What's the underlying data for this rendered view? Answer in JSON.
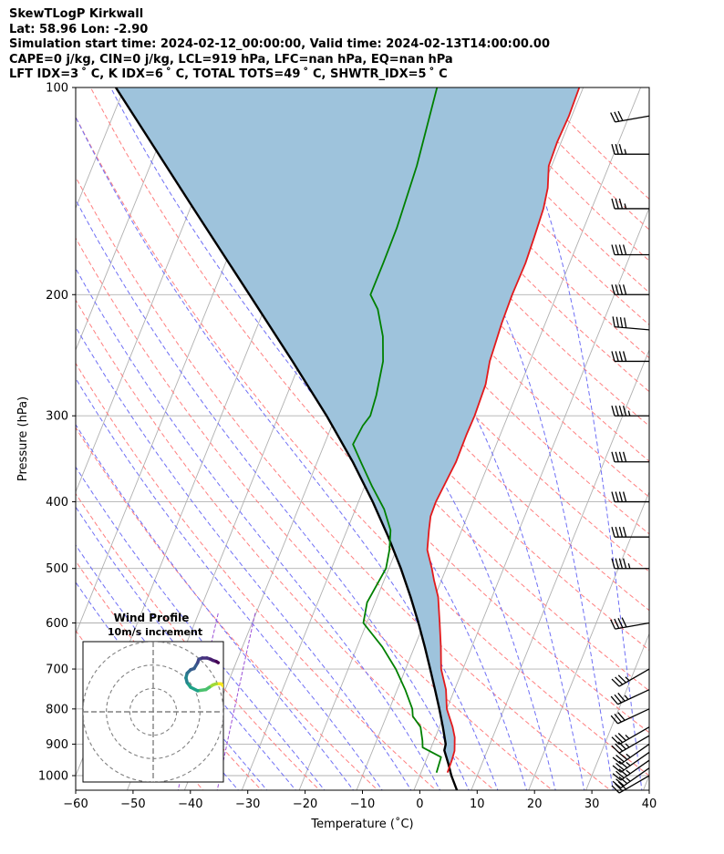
{
  "header": {
    "line1": "SkewTLogP Kirkwall",
    "line2": "Lat: 58.96   Lon: -2.90",
    "line3": "Simulation start time: 2024-02-12_00:00:00, Valid time: 2024-02-13T14:00:00.00",
    "line4": "CAPE=0 j/kg, CIN=0 j/kg, LCL=919 hPa, LFC=nan hPa, EQ=nan hPa",
    "line5": "LFT IDX=3 ˚ C, K IDX=6 ˚ C, TOTAL TOTS=49 ˚ C, SHWTR_IDX=5 ˚ C"
  },
  "colors": {
    "temperature": "#e31a1c",
    "dewpoint": "#008000",
    "parcel": "#000000",
    "fill": "#9ec3dc",
    "dry_adiabat": "#ff7f7f",
    "moist_adiabat": "#6f6ff5",
    "mixing_ratio": "#9b4fd6",
    "isotherm": "#b0b0b0",
    "isobar": "#b0b0b0"
  },
  "chart_data": {
    "type": "skewt-logp",
    "title": "SkewTLogP Kirkwall",
    "xlabel": "Temperature (˚C)",
    "ylabel": "Pressure (hPa)",
    "xlim": [
      -60,
      40
    ],
    "ylim": [
      1050,
      100
    ],
    "x_ticks": [
      "−60",
      "−50",
      "−40",
      "−30",
      "−20",
      "−10",
      "0",
      "10",
      "20",
      "30",
      "40"
    ],
    "x_tick_values": [
      -60,
      -50,
      -40,
      -30,
      -20,
      -10,
      0,
      10,
      20,
      30,
      40
    ],
    "y_ticks": [
      "1000",
      "900",
      "800",
      "700",
      "600",
      "500",
      "400",
      "300",
      "200",
      "100"
    ],
    "y_tick_values": [
      1000,
      900,
      800,
      700,
      600,
      500,
      400,
      300,
      200,
      100
    ],
    "skew_deg_per_decade": 48.5,
    "temperature_profile": [
      [
        990,
        4.6
      ],
      [
        950,
        4.5
      ],
      [
        920,
        4.3
      ],
      [
        880,
        3.4
      ],
      [
        850,
        2.3
      ],
      [
        800,
        0.0
      ],
      [
        750,
        -1.5
      ],
      [
        700,
        -3.8
      ],
      [
        650,
        -5.4
      ],
      [
        600,
        -7.3
      ],
      [
        550,
        -9.4
      ],
      [
        520,
        -11.3
      ],
      [
        500,
        -12.5
      ],
      [
        470,
        -14.6
      ],
      [
        440,
        -15.7
      ],
      [
        420,
        -16.4
      ],
      [
        400,
        -16.5
      ],
      [
        370,
        -16.1
      ],
      [
        350,
        -15.8
      ],
      [
        320,
        -15.9
      ],
      [
        300,
        -15.8
      ],
      [
        270,
        -16.1
      ],
      [
        250,
        -17.0
      ],
      [
        220,
        -17.6
      ],
      [
        200,
        -17.8
      ],
      [
        180,
        -17.7
      ],
      [
        165,
        -18.0
      ],
      [
        150,
        -18.4
      ],
      [
        140,
        -19.1
      ],
      [
        130,
        -20.5
      ],
      [
        120,
        -20.7
      ],
      [
        110,
        -20.5
      ],
      [
        100,
        -20.7
      ]
    ],
    "dewpoint_profile": [
      [
        990,
        2.7
      ],
      [
        940,
        2.4
      ],
      [
        910,
        -1.5
      ],
      [
        890,
        -2.0
      ],
      [
        850,
        -3.3
      ],
      [
        820,
        -5.4
      ],
      [
        800,
        -6.0
      ],
      [
        750,
        -8.6
      ],
      [
        700,
        -11.7
      ],
      [
        650,
        -15.6
      ],
      [
        600,
        -20.6
      ],
      [
        560,
        -21.4
      ],
      [
        500,
        -20.5
      ],
      [
        470,
        -21.2
      ],
      [
        440,
        -22.4
      ],
      [
        410,
        -25.0
      ],
      [
        380,
        -28.7
      ],
      [
        350,
        -32.4
      ],
      [
        330,
        -35.0
      ],
      [
        310,
        -34.6
      ],
      [
        300,
        -34.0
      ],
      [
        280,
        -34.4
      ],
      [
        250,
        -35.6
      ],
      [
        230,
        -37.4
      ],
      [
        210,
        -40.2
      ],
      [
        200,
        -42.5
      ],
      [
        180,
        -42.5
      ],
      [
        160,
        -42.6
      ],
      [
        130,
        -43.5
      ],
      [
        100,
        -45.5
      ]
    ],
    "parcel_profile": [
      [
        1050,
        7.5
      ],
      [
        1000,
        5.5
      ],
      [
        960,
        4.1
      ],
      [
        919,
        2.5
      ],
      [
        900,
        2.3
      ],
      [
        850,
        0.6
      ],
      [
        800,
        -1.3
      ],
      [
        750,
        -3.4
      ],
      [
        700,
        -5.7
      ],
      [
        650,
        -8.2
      ],
      [
        600,
        -11.0
      ],
      [
        550,
        -14.2
      ],
      [
        500,
        -17.9
      ],
      [
        450,
        -22.3
      ],
      [
        400,
        -27.5
      ],
      [
        350,
        -33.8
      ],
      [
        300,
        -41.6
      ],
      [
        250,
        -51.4
      ],
      [
        200,
        -63.6
      ],
      [
        150,
        -79.4
      ],
      [
        100,
        -101.5
      ]
    ],
    "wind_barbs": [
      {
        "pressure": 1000,
        "speed_kt": 30,
        "direction": 240
      },
      {
        "pressure": 975,
        "speed_kt": 35,
        "direction": 235
      },
      {
        "pressure": 950,
        "speed_kt": 35,
        "direction": 235
      },
      {
        "pressure": 925,
        "speed_kt": 35,
        "direction": 235
      },
      {
        "pressure": 900,
        "speed_kt": 35,
        "direction": 235
      },
      {
        "pressure": 875,
        "speed_kt": 35,
        "direction": 240
      },
      {
        "pressure": 850,
        "speed_kt": 35,
        "direction": 240
      },
      {
        "pressure": 800,
        "speed_kt": 30,
        "direction": 245
      },
      {
        "pressure": 750,
        "speed_kt": 35,
        "direction": 245
      },
      {
        "pressure": 700,
        "speed_kt": 35,
        "direction": 240
      },
      {
        "pressure": 600,
        "speed_kt": 40,
        "direction": 260
      },
      {
        "pressure": 500,
        "speed_kt": 45,
        "direction": 270
      },
      {
        "pressure": 450,
        "speed_kt": 40,
        "direction": 270
      },
      {
        "pressure": 400,
        "speed_kt": 40,
        "direction": 270
      },
      {
        "pressure": 350,
        "speed_kt": 40,
        "direction": 270
      },
      {
        "pressure": 300,
        "speed_kt": 45,
        "direction": 270
      },
      {
        "pressure": 250,
        "speed_kt": 40,
        "direction": 270
      },
      {
        "pressure": 225,
        "speed_kt": 40,
        "direction": 275
      },
      {
        "pressure": 200,
        "speed_kt": 40,
        "direction": 270
      },
      {
        "pressure": 175,
        "speed_kt": 40,
        "direction": 270
      },
      {
        "pressure": 150,
        "speed_kt": 35,
        "direction": 270
      },
      {
        "pressure": 125,
        "speed_kt": 35,
        "direction": 270
      },
      {
        "pressure": 110,
        "speed_kt": 30,
        "direction": 260
      }
    ],
    "hodograph": {
      "title": "Wind Profile",
      "subtitle": "10m/s increment",
      "ring_radii_ms": [
        10,
        20,
        30
      ],
      "range_ms": 30,
      "uv": [
        [
          30.0,
          11.0
        ],
        [
          29.0,
          12.0
        ],
        [
          27.0,
          12.0
        ],
        [
          25.5,
          11.5
        ],
        [
          24.0,
          10.5
        ],
        [
          22.5,
          9.5
        ],
        [
          19.0,
          9.0
        ],
        [
          16.0,
          10.5
        ],
        [
          14.5,
          12.5
        ],
        [
          14.0,
          14.5
        ],
        [
          14.5,
          16.5
        ],
        [
          16.0,
          18.0
        ],
        [
          17.5,
          18.5
        ],
        [
          19.0,
          21.0
        ],
        [
          19.5,
          22.5
        ],
        [
          21.0,
          23.0
        ],
        [
          23.0,
          23.0
        ],
        [
          24.5,
          22.5
        ],
        [
          25.5,
          22.0
        ],
        [
          27.0,
          21.5
        ],
        [
          27.8,
          21.0
        ]
      ],
      "colors": [
        "#f6e620",
        "#a0da39",
        "#4ac16d",
        "#1fa187",
        "#25858e",
        "#2d708e",
        "#365c8d",
        "#3f4788",
        "#46317e",
        "#481c6e",
        "#440154"
      ]
    }
  }
}
